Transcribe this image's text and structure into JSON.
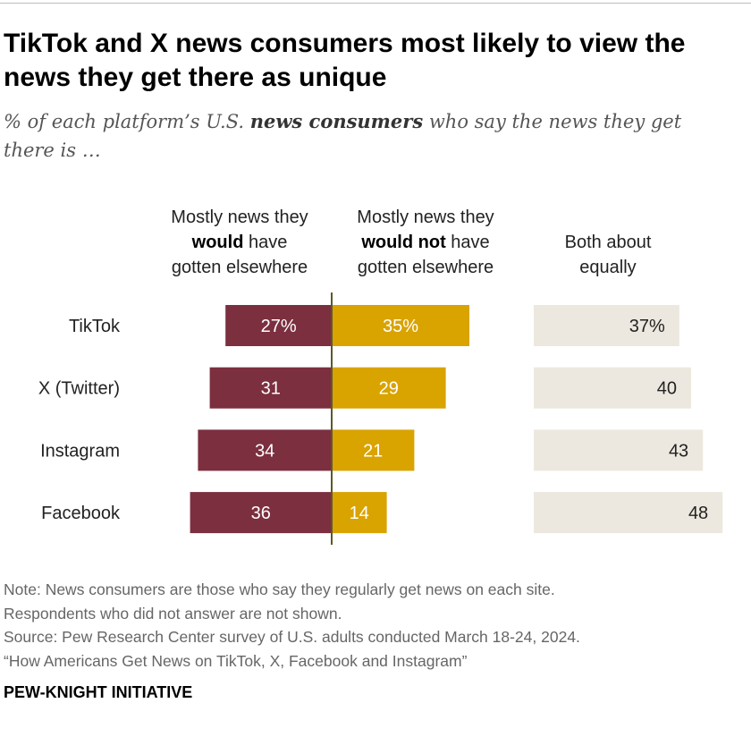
{
  "title": "TikTok and X news consumers most likely to view the news they get there as unique",
  "subtitle": {
    "before": "% of each platform’s U.S. ",
    "bold": "news consumers",
    "after": " who say the news they get there is …"
  },
  "columns": {
    "elsewhere": {
      "line1": "Mostly news they",
      "bold": "would",
      "rest": " have",
      "line3": "gotten elsewhere"
    },
    "not_elsewhere": {
      "line1": "Mostly news they",
      "bold": "would not",
      "rest": " have",
      "line3": "gotten elsewhere"
    },
    "equally": {
      "line1": "Both about",
      "line2": "equally"
    }
  },
  "chart_data": {
    "type": "bar",
    "categories": [
      "TikTok",
      "X (Twitter)",
      "Instagram",
      "Facebook"
    ],
    "series": [
      {
        "name": "Mostly news they would have gotten elsewhere",
        "values": [
          27,
          31,
          34,
          36
        ],
        "labels": [
          "27%",
          "31",
          "34",
          "36"
        ]
      },
      {
        "name": "Mostly news they would not have gotten elsewhere",
        "values": [
          35,
          29,
          21,
          14
        ],
        "labels": [
          "35%",
          "29",
          "21",
          "14"
        ]
      },
      {
        "name": "Both about equally",
        "values": [
          37,
          40,
          43,
          48
        ],
        "labels": [
          "37%",
          "40",
          "43",
          "48"
        ]
      }
    ],
    "colors": {
      "elsewhere": "#7b2f3f",
      "not_elsewhere": "#d9a300",
      "equally": "#ece8df",
      "axis": "#5a5a2a"
    }
  },
  "notes": [
    "Note: News consumers are those who say they regularly get news on each site.",
    "Respondents who did not answer are not shown.",
    "Source: Pew Research Center survey of U.S. adults conducted March 18-24, 2024.",
    "“How Americans Get News on TikTok, X, Facebook and Instagram”"
  ],
  "brand": "PEW-KNIGHT INITIATIVE"
}
